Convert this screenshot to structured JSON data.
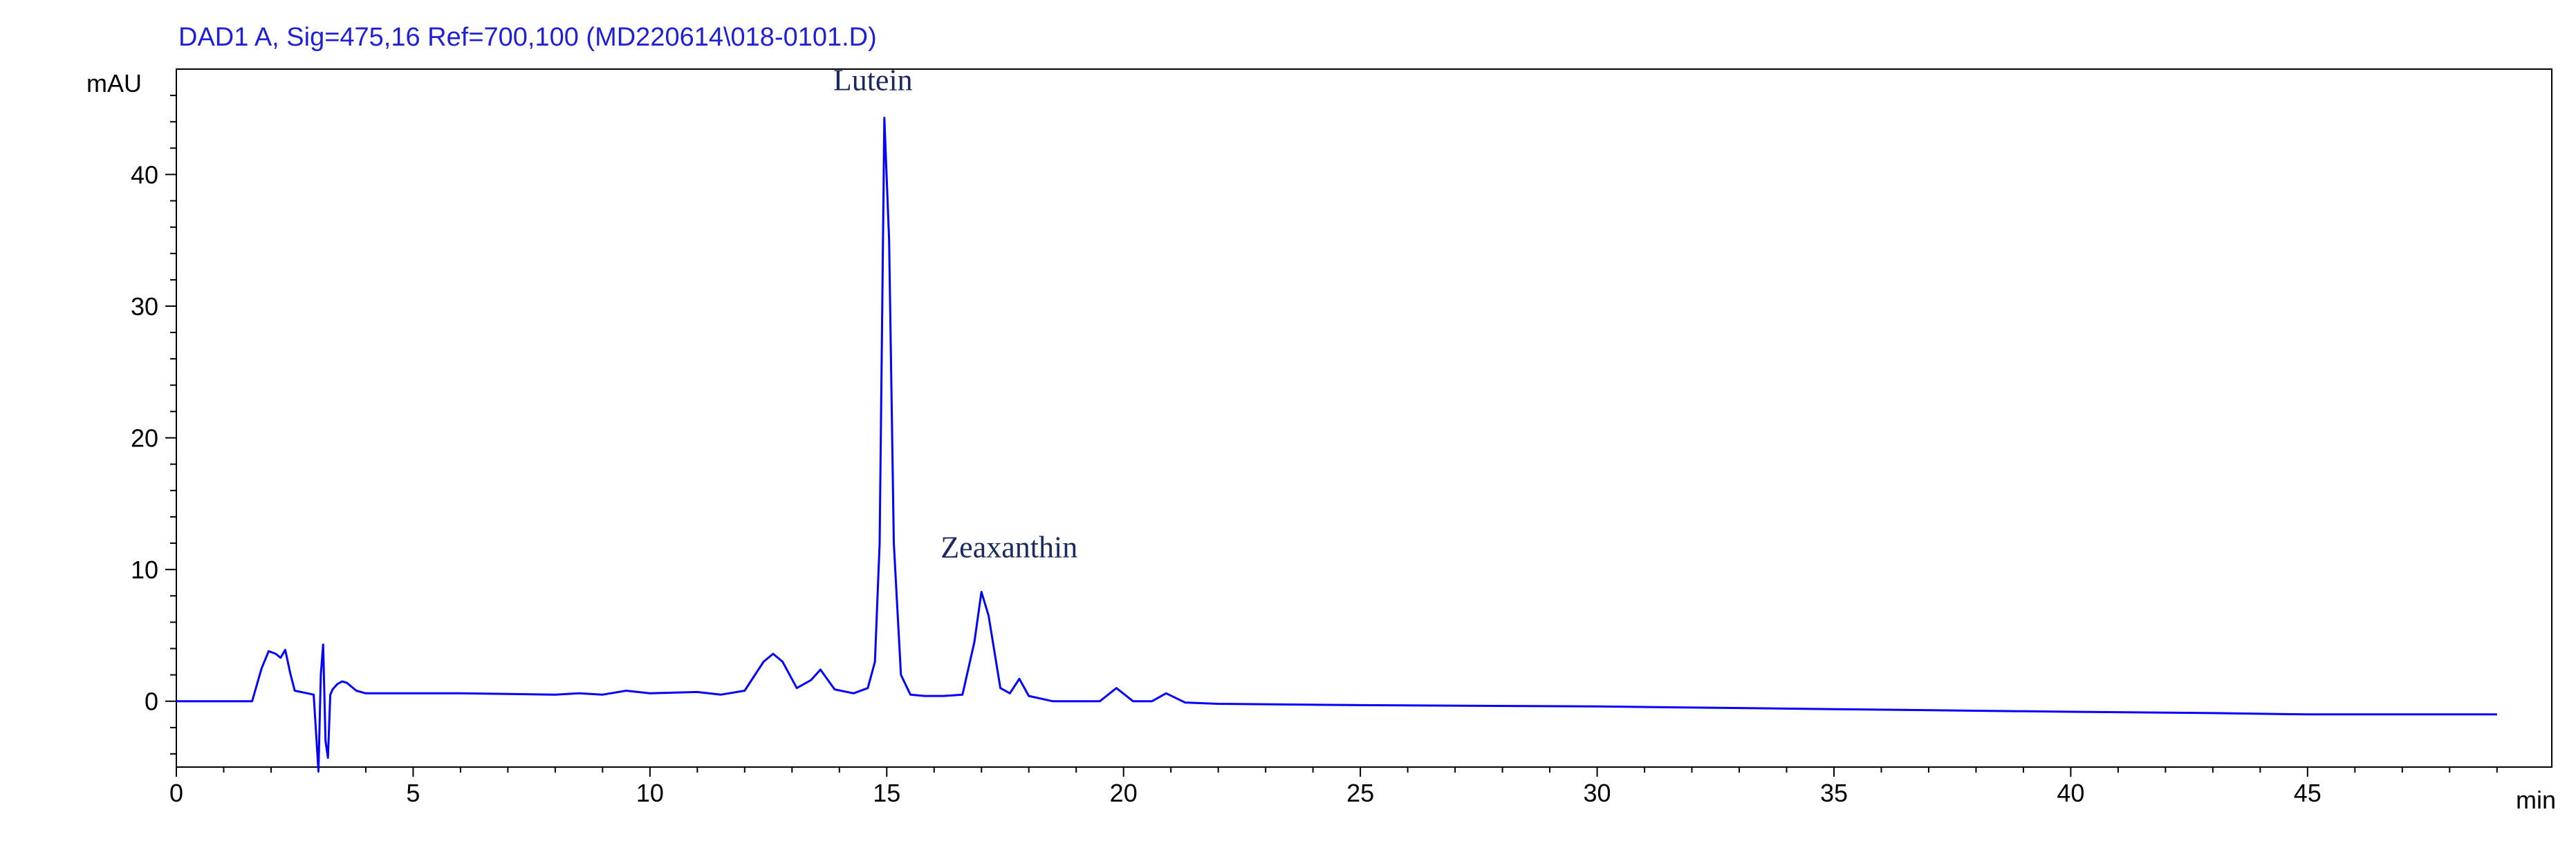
{
  "chart_data": {
    "type": "line",
    "title": "DAD1 A, Sig=475,16 Ref=700,100 (MD220614\\018-0101.D)",
    "ylabel": "mAU",
    "xlabel": "min",
    "xlim": [
      0,
      49.5
    ],
    "ylim": [
      -5,
      48
    ],
    "x_ticks": [
      0,
      5,
      10,
      15,
      20,
      25,
      30,
      35,
      40,
      45
    ],
    "y_ticks": [
      0,
      10,
      20,
      30,
      40
    ],
    "grid": false,
    "line_color": "#0000ff",
    "title_color": "#1f1fd6",
    "annotation_color": "#1a2a5e",
    "annotations": [
      {
        "text": "Lutein",
        "x": 15.0,
        "y": 44.3
      },
      {
        "text": "Zeaxanthin",
        "x": 17.0,
        "y": 8.3
      }
    ],
    "series": [
      {
        "x": [
          0,
          1.6,
          1.8,
          1.95,
          2.1,
          2.2,
          2.3,
          2.4,
          2.5,
          2.9,
          3.0,
          3.05,
          3.1,
          3.15,
          3.2,
          3.25,
          3.3,
          3.4,
          3.5,
          3.6,
          3.8,
          4.0,
          6.0,
          8.0,
          8.5,
          9.0,
          9.5,
          10.0,
          11.0,
          11.5,
          12.0,
          12.4,
          12.6,
          12.8,
          13.1,
          13.4,
          13.6,
          13.9,
          14.3,
          14.6,
          14.75,
          14.85,
          14.95,
          15.05,
          15.15,
          15.3,
          15.5,
          15.8,
          16.2,
          16.6,
          16.85,
          17.0,
          17.15,
          17.4,
          17.6,
          17.8,
          18.0,
          18.5,
          19.5,
          19.85,
          20.2,
          20.6,
          20.9,
          21.3,
          22.0,
          25.0,
          30.0,
          35.0,
          40.0,
          43.0,
          45.0,
          49.0
        ],
        "y": [
          0,
          0,
          2.5,
          3.8,
          3.6,
          3.3,
          3.9,
          2.2,
          0.8,
          0.5,
          -5.3,
          2.0,
          4.3,
          -3.0,
          -4.3,
          0.5,
          0.9,
          1.3,
          1.5,
          1.4,
          0.8,
          0.6,
          0.6,
          0.5,
          0.6,
          0.5,
          0.8,
          0.6,
          0.7,
          0.5,
          0.8,
          3.0,
          3.6,
          3.0,
          1.0,
          1.6,
          2.4,
          0.9,
          0.6,
          1.0,
          3.0,
          12.0,
          44.3,
          35.0,
          12.0,
          2.0,
          0.5,
          0.4,
          0.4,
          0.5,
          4.5,
          8.3,
          6.5,
          1.0,
          0.6,
          1.7,
          0.4,
          0.0,
          0.0,
          1.0,
          0.0,
          0.0,
          0.6,
          -0.1,
          -0.2,
          -0.3,
          -0.4,
          -0.6,
          -0.8,
          -0.9,
          -1.0,
          -1.0
        ]
      }
    ]
  }
}
